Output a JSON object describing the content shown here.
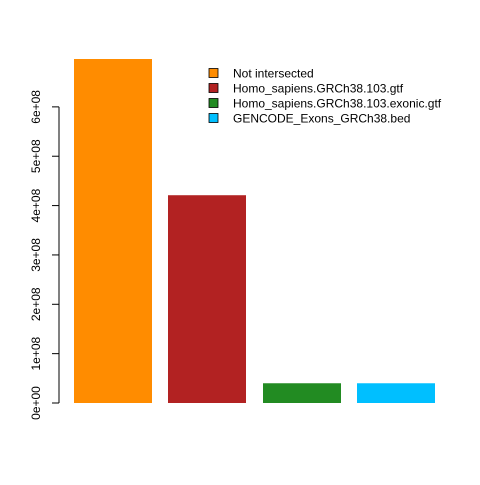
{
  "chart_data": {
    "type": "bar",
    "title": "",
    "xlabel": "",
    "ylabel": "",
    "ylim": [
      0,
      700000000
    ],
    "grid": false,
    "legend_position": "top-right",
    "y_ticks": [
      {
        "value": 0,
        "label": "0e+00"
      },
      {
        "value": 100000000,
        "label": "1e+08"
      },
      {
        "value": 200000000,
        "label": "2e+08"
      },
      {
        "value": 300000000,
        "label": "3e+08"
      },
      {
        "value": 400000000,
        "label": "4e+08"
      },
      {
        "value": 500000000,
        "label": "5e+08"
      },
      {
        "value": 600000000,
        "label": "6e+08"
      }
    ],
    "categories": [
      "Not intersected",
      "Homo_sapiens.GRCh38.103.gtf",
      "Homo_sapiens.GRCh38.103.exonic.gtf",
      "GENCODE_Exons_GRCh38.bed"
    ],
    "values": [
      697000000,
      421000000,
      40000000,
      40000000
    ],
    "colors": [
      "#ff8c00",
      "#b22222",
      "#228b22",
      "#00bfff"
    ]
  }
}
